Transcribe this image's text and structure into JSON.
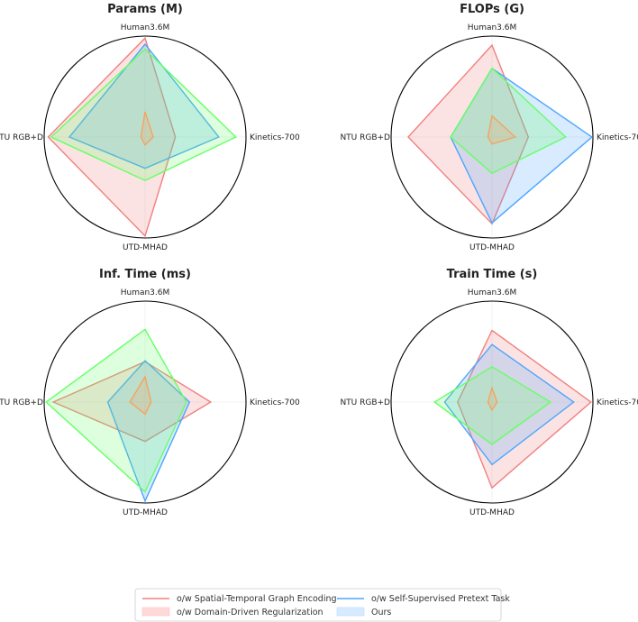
{
  "colors": {
    "spatial_temporal": "#f08080",
    "self_supervised": "#4da6ff",
    "domain_driven": "#66ff66",
    "ours": "#f4a460"
  },
  "chart_data": [
    {
      "type": "radar",
      "title": "Params (M)",
      "axes": [
        "Human3.6M",
        "Kinetics-700",
        "UTD-MHAD",
        "NTU RGB+D"
      ],
      "rmax": 1.0,
      "grid": false,
      "series": [
        {
          "key": "spatial_temporal",
          "values": [
            0.98,
            0.3,
            0.98,
            0.96
          ]
        },
        {
          "key": "self_supervised",
          "values": [
            0.92,
            0.73,
            0.31,
            0.75
          ]
        },
        {
          "key": "domain_driven",
          "values": [
            0.87,
            0.9,
            0.43,
            0.93
          ]
        },
        {
          "key": "ours",
          "values": [
            0.25,
            0.08,
            0.08,
            0.04
          ]
        }
      ]
    },
    {
      "type": "radar",
      "title": "FLOPs (G)",
      "axes": [
        "Human3.6M",
        "Kinetics-700",
        "UTD-MHAD",
        "NTU RGB+D"
      ],
      "rmax": 1.0,
      "grid": false,
      "series": [
        {
          "key": "spatial_temporal",
          "values": [
            0.91,
            0.36,
            0.86,
            0.83
          ]
        },
        {
          "key": "self_supervised",
          "values": [
            0.68,
            0.99,
            0.85,
            0.41
          ]
        },
        {
          "key": "domain_driven",
          "values": [
            0.68,
            0.73,
            0.36,
            0.41
          ]
        },
        {
          "key": "ours",
          "values": [
            0.21,
            0.23,
            0.07,
            0.04
          ]
        }
      ]
    },
    {
      "type": "radar",
      "title": "Inf. Time (ms)",
      "axes": [
        "Human3.6M",
        "Kinetics-700",
        "UTD-MHAD",
        "NTU RGB+D"
      ],
      "rmax": 1.0,
      "grid": false,
      "series": [
        {
          "key": "spatial_temporal",
          "values": [
            0.4,
            0.65,
            0.39,
            0.91
          ]
        },
        {
          "key": "self_supervised",
          "values": [
            0.41,
            0.44,
            0.98,
            0.37
          ]
        },
        {
          "key": "domain_driven",
          "values": [
            0.72,
            0.41,
            0.89,
            0.98
          ]
        },
        {
          "key": "ours",
          "values": [
            0.25,
            0.06,
            0.12,
            0.15
          ]
        }
      ]
    },
    {
      "type": "radar",
      "title": "Train Time (s)",
      "axes": [
        "Human3.6M",
        "Kinetics-700",
        "UTD-MHAD",
        "NTU RGB+D"
      ],
      "rmax": 1.0,
      "grid": false,
      "series": [
        {
          "key": "spatial_temporal",
          "values": [
            0.71,
            0.98,
            0.85,
            0.34
          ]
        },
        {
          "key": "self_supervised",
          "values": [
            0.57,
            0.81,
            0.62,
            0.47
          ]
        },
        {
          "key": "domain_driven",
          "values": [
            0.35,
            0.58,
            0.42,
            0.57
          ]
        },
        {
          "key": "ours",
          "values": [
            0.14,
            0.05,
            0.08,
            0.04
          ]
        }
      ]
    }
  ],
  "legend": {
    "position": "bottom-center",
    "entries": [
      {
        "key": "spatial_temporal",
        "label": "o/w Spatial-Temporal Graph Encoding",
        "style": "line"
      },
      {
        "key": "domain_driven",
        "label": "o/w Domain-Driven Regularization",
        "style": "patch"
      },
      {
        "key": "self_supervised",
        "label": "o/w Self-Supervised Pretext Task",
        "style": "line"
      },
      {
        "key": "ours",
        "label": "Ours",
        "style": "patch"
      }
    ]
  }
}
